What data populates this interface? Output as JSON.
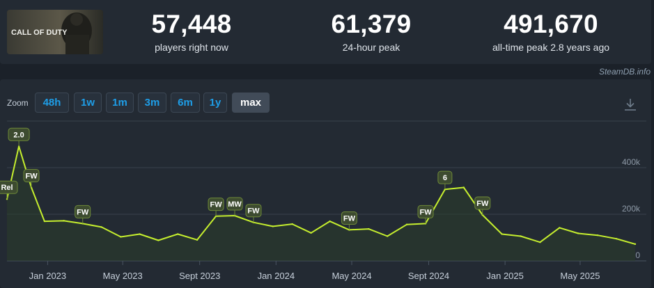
{
  "stats": [
    {
      "value": "57,448",
      "label": "players right now"
    },
    {
      "value": "61,379",
      "label": "24-hour peak"
    },
    {
      "value": "491,670",
      "label": "all-time peak 2.8 years ago"
    }
  ],
  "game_logo_text": "CALL OF DUTY",
  "credit": "SteamDB.info",
  "zoom": {
    "label": "Zoom",
    "options": [
      "48h",
      "1w",
      "1m",
      "3m",
      "6m",
      "1y",
      "max"
    ],
    "active": "max"
  },
  "colors": {
    "line": "#c6ef2e",
    "area": "#2c3c2a",
    "badge_bg": "#3d4b30",
    "badge_border": "#6e8a38",
    "grid": "#3a434e"
  },
  "chart_data": {
    "type": "line",
    "x_ticks": [
      "Jan 2023",
      "May 2023",
      "Sept 2023",
      "Jan 2024",
      "May 2024",
      "Sept 2024",
      "Jan 2025",
      "May 2025"
    ],
    "x_tick_dates": [
      "2023-01-01",
      "2023-05-01",
      "2023-09-01",
      "2024-01-01",
      "2024-05-01",
      "2024-09-01",
      "2025-01-01",
      "2025-05-01"
    ],
    "y_ticks": [
      0,
      200000,
      400000
    ],
    "y_tick_labels": [
      "0",
      "200k",
      "400k"
    ],
    "ylim": [
      0,
      600000
    ],
    "grid": true,
    "series": [
      {
        "values": [
          {
            "x": "2022-10-28",
            "y": 265000
          },
          {
            "x": "2022-11-16",
            "y": 491670
          },
          {
            "x": "2022-12-06",
            "y": 315000
          },
          {
            "x": "2022-12-27",
            "y": 170000
          },
          {
            "x": "2023-01-27",
            "y": 172000
          },
          {
            "x": "2023-02-26",
            "y": 160000
          },
          {
            "x": "2023-03-28",
            "y": 145000
          },
          {
            "x": "2023-04-28",
            "y": 103000
          },
          {
            "x": "2023-05-28",
            "y": 115000
          },
          {
            "x": "2023-06-27",
            "y": 88000
          },
          {
            "x": "2023-07-28",
            "y": 115000
          },
          {
            "x": "2023-08-28",
            "y": 90000
          },
          {
            "x": "2023-09-27",
            "y": 192000
          },
          {
            "x": "2023-10-27",
            "y": 194000
          },
          {
            "x": "2023-11-26",
            "y": 165000
          },
          {
            "x": "2023-12-27",
            "y": 148000
          },
          {
            "x": "2024-01-27",
            "y": 158000
          },
          {
            "x": "2024-02-26",
            "y": 120000
          },
          {
            "x": "2024-03-27",
            "y": 170000
          },
          {
            "x": "2024-04-27",
            "y": 133000
          },
          {
            "x": "2024-05-28",
            "y": 137000
          },
          {
            "x": "2024-06-27",
            "y": 106000
          },
          {
            "x": "2024-07-28",
            "y": 156000
          },
          {
            "x": "2024-08-27",
            "y": 160000
          },
          {
            "x": "2024-09-27",
            "y": 307000
          },
          {
            "x": "2024-10-27",
            "y": 315000
          },
          {
            "x": "2024-11-26",
            "y": 197000
          },
          {
            "x": "2024-12-27",
            "y": 115000
          },
          {
            "x": "2025-01-26",
            "y": 106000
          },
          {
            "x": "2025-02-26",
            "y": 80000
          },
          {
            "x": "2025-03-29",
            "y": 142000
          },
          {
            "x": "2025-04-28",
            "y": 118000
          },
          {
            "x": "2025-05-29",
            "y": 110000
          },
          {
            "x": "2025-06-28",
            "y": 95000
          },
          {
            "x": "2025-07-28",
            "y": 72000
          }
        ]
      }
    ],
    "annotations": [
      {
        "x": "2022-10-28",
        "y": 265000,
        "text": "Rel"
      },
      {
        "x": "2022-11-16",
        "y": 491670,
        "text": "2.0"
      },
      {
        "x": "2022-12-06",
        "y": 315000,
        "text": "FW"
      },
      {
        "x": "2023-02-26",
        "y": 160000,
        "text": "FW"
      },
      {
        "x": "2023-09-27",
        "y": 192000,
        "text": "FW"
      },
      {
        "x": "2023-10-27",
        "y": 194000,
        "text": "MW"
      },
      {
        "x": "2023-11-26",
        "y": 165000,
        "text": "FW"
      },
      {
        "x": "2024-04-27",
        "y": 133000,
        "text": "FW"
      },
      {
        "x": "2024-08-27",
        "y": 160000,
        "text": "FW"
      },
      {
        "x": "2024-09-27",
        "y": 307000,
        "text": "6"
      },
      {
        "x": "2024-11-26",
        "y": 197000,
        "text": "FW"
      }
    ]
  }
}
